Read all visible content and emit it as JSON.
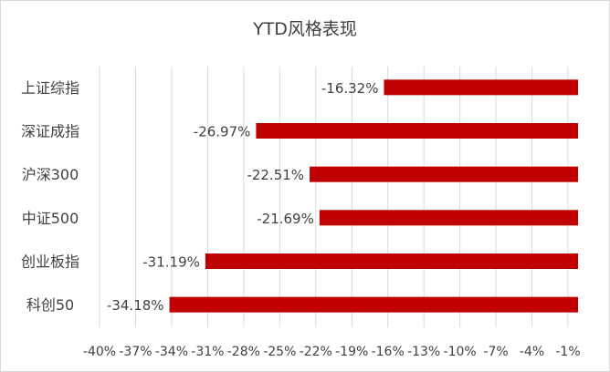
{
  "chart_data": {
    "type": "bar",
    "orientation": "horizontal",
    "title": "YTD风格表现",
    "categories": [
      "上证综指",
      "深证成指",
      "沪深300",
      "中证500",
      "创业板指",
      "科创50"
    ],
    "values": [
      -16.32,
      -26.97,
      -22.51,
      -21.69,
      -31.19,
      -34.18
    ],
    "data_labels": [
      "-16.32%",
      "-26.97%",
      "-22.51%",
      "-21.69%",
      "-31.19%",
      "-34.18%"
    ],
    "x_ticks": [
      -40,
      -37,
      -34,
      -31,
      -28,
      -25,
      -22,
      -19,
      -16,
      -13,
      -10,
      -7,
      -4,
      -1
    ],
    "x_tick_labels": [
      "-40%",
      "-37%",
      "-34%",
      "-31%",
      "-28%",
      "-25%",
      "-22%",
      "-19%",
      "-16%",
      "-13%",
      "-10%",
      "-7%",
      "-4%",
      "-1%"
    ],
    "xlim": [
      -40,
      0
    ],
    "xlabel": "",
    "ylabel": "",
    "grid": "vertical",
    "legend": "none",
    "colors": {
      "bar": "#c00000",
      "grid": "#d9d9d9",
      "text": "#404040"
    }
  }
}
